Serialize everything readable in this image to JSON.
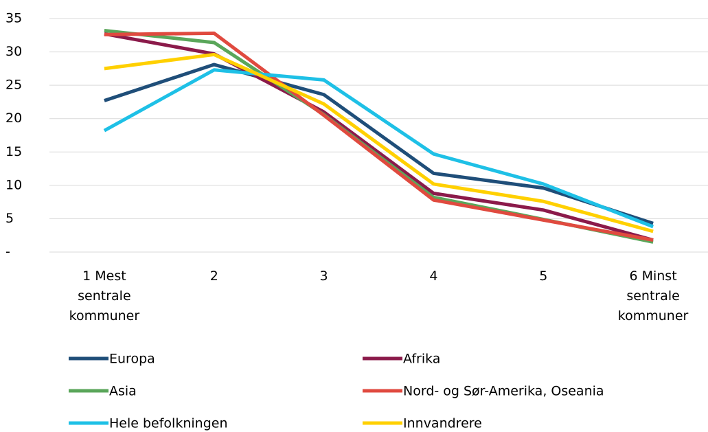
{
  "chart_data": {
    "type": "line",
    "categories": [
      "1 Mest sentrale kommuner",
      "2",
      "3",
      "4",
      "5",
      "6 Minst sentrale kommuner"
    ],
    "series": [
      {
        "name": "Europa",
        "color": "#1f4e79",
        "values": [
          22.7,
          28.1,
          23.6,
          11.8,
          9.6,
          4.3
        ]
      },
      {
        "name": "Afrika",
        "color": "#8b1a4a",
        "values": [
          32.7,
          29.7,
          21.0,
          8.8,
          6.3,
          1.8
        ]
      },
      {
        "name": "Asia",
        "color": "#5aa65a",
        "values": [
          33.2,
          31.4,
          20.6,
          8.2,
          4.9,
          1.5
        ]
      },
      {
        "name": "Nord- og Sør-Amerika, Oseania",
        "color": "#e04a3f",
        "values": [
          32.6,
          32.8,
          20.5,
          7.8,
          4.8,
          1.8
        ]
      },
      {
        "name": "Hele befolkningen",
        "color": "#1ec0e6",
        "values": [
          18.2,
          27.3,
          25.8,
          14.7,
          10.2,
          3.8
        ]
      },
      {
        "name": "Innvandrere",
        "color": "#ffd000",
        "values": [
          27.5,
          29.6,
          22.2,
          10.2,
          7.6,
          3.1
        ]
      }
    ],
    "ylim": [
      0,
      35
    ],
    "yticks": [
      {
        "value": 0,
        "label": "-"
      },
      5,
      10,
      15,
      20,
      25,
      30,
      35
    ],
    "grid": true
  }
}
